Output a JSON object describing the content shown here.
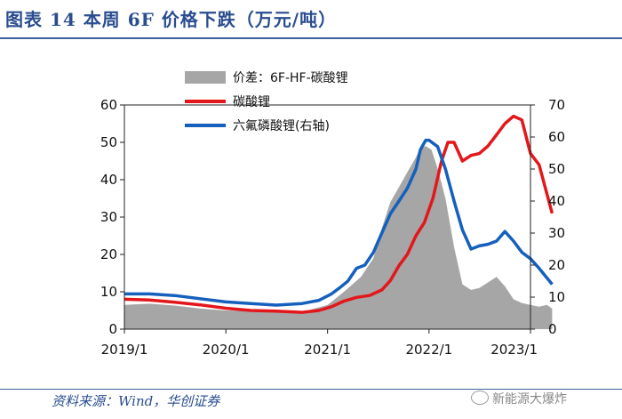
{
  "figure": {
    "title": "图表 14  本周 6F 价格下跌（万元/吨）",
    "source": "资料来源：Wind，华创证券",
    "watermark": "新能源大爆炸"
  },
  "chart_data": {
    "type": "line",
    "x_ticks": [
      "2019/1",
      "2020/1",
      "2021/1",
      "2022/1",
      "2023/1"
    ],
    "y_left": {
      "ticks": [
        0,
        10,
        20,
        30,
        40,
        50,
        60
      ],
      "range": [
        0,
        60
      ]
    },
    "y_right": {
      "ticks": [
        0,
        10,
        20,
        30,
        40,
        50,
        60,
        70
      ],
      "range": [
        0,
        70
      ]
    },
    "legend_position": "top-center",
    "colors": {
      "spread": "#a6a6a6",
      "li2co3": "#e3171b",
      "lipf6": "#1560bd"
    },
    "series": [
      {
        "name": "价差：6F-HF-碳酸锂",
        "kind": "area",
        "axis": "left",
        "points": [
          [
            "2019-01-01",
            6.5
          ],
          [
            "2019-04-01",
            6.8
          ],
          [
            "2019-07-01",
            6.3
          ],
          [
            "2019-10-01",
            5.5
          ],
          [
            "2020-01-01",
            5.0
          ],
          [
            "2020-04-01",
            4.8
          ],
          [
            "2020-07-01",
            4.5
          ],
          [
            "2020-10-01",
            4.6
          ],
          [
            "2021-01-01",
            6.5
          ],
          [
            "2021-03-01",
            10.0
          ],
          [
            "2021-05-01",
            14.0
          ],
          [
            "2021-06-15",
            19.0
          ],
          [
            "2021-07-15",
            27.0
          ],
          [
            "2021-08-15",
            34.0
          ],
          [
            "2021-09-15",
            38.0
          ],
          [
            "2021-10-15",
            42.0
          ],
          [
            "2021-11-15",
            46.0
          ],
          [
            "2021-12-01",
            48.5
          ],
          [
            "2021-12-20",
            49.0
          ],
          [
            "2022-01-10",
            48.0
          ],
          [
            "2022-02-01",
            43.0
          ],
          [
            "2022-03-01",
            35.0
          ],
          [
            "2022-04-01",
            22.0
          ],
          [
            "2022-05-01",
            12.0
          ],
          [
            "2022-06-01",
            10.5
          ],
          [
            "2022-07-01",
            11.0
          ],
          [
            "2022-08-01",
            12.5
          ],
          [
            "2022-09-01",
            14.0
          ],
          [
            "2022-10-01",
            11.5
          ],
          [
            "2022-11-01",
            8.0
          ],
          [
            "2022-12-01",
            7.0
          ],
          [
            "2023-01-01",
            6.5
          ],
          [
            "2023-02-01",
            6.0
          ],
          [
            "2023-03-01",
            6.5
          ],
          [
            "2023-03-20",
            5.5
          ]
        ]
      },
      {
        "name": "碳酸锂",
        "kind": "line",
        "axis": "left",
        "points": [
          [
            "2019-01-01",
            8.0
          ],
          [
            "2019-04-01",
            7.8
          ],
          [
            "2019-07-01",
            7.2
          ],
          [
            "2019-10-01",
            6.5
          ],
          [
            "2020-01-01",
            5.6
          ],
          [
            "2020-04-01",
            5.0
          ],
          [
            "2020-07-01",
            4.8
          ],
          [
            "2020-10-01",
            4.5
          ],
          [
            "2020-12-01",
            5.0
          ],
          [
            "2021-01-15",
            6.0
          ],
          [
            "2021-03-01",
            7.5
          ],
          [
            "2021-04-15",
            8.5
          ],
          [
            "2021-06-01",
            9.0
          ],
          [
            "2021-07-15",
            10.5
          ],
          [
            "2021-08-15",
            13.0
          ],
          [
            "2021-09-15",
            17.0
          ],
          [
            "2021-10-15",
            20.0
          ],
          [
            "2021-11-15",
            25.0
          ],
          [
            "2021-12-15",
            28.5
          ],
          [
            "2022-01-15",
            35.0
          ],
          [
            "2022-02-15",
            45.0
          ],
          [
            "2022-03-10",
            50.0
          ],
          [
            "2022-04-01",
            50.0
          ],
          [
            "2022-05-01",
            45.0
          ],
          [
            "2022-06-01",
            46.5
          ],
          [
            "2022-07-01",
            47.0
          ],
          [
            "2022-08-01",
            49.0
          ],
          [
            "2022-09-01",
            52.0
          ],
          [
            "2022-10-01",
            55.0
          ],
          [
            "2022-11-01",
            57.0
          ],
          [
            "2022-12-01",
            56.0
          ],
          [
            "2023-01-01",
            47.0
          ],
          [
            "2023-02-01",
            44.0
          ],
          [
            "2023-03-20",
            31.0
          ]
        ]
      },
      {
        "name": "六氟磷酸锂(右轴)",
        "kind": "line",
        "axis": "right",
        "points": [
          [
            "2019-01-01",
            11.0
          ],
          [
            "2019-04-01",
            11.0
          ],
          [
            "2019-07-01",
            10.5
          ],
          [
            "2019-10-01",
            9.5
          ],
          [
            "2020-01-01",
            8.5
          ],
          [
            "2020-04-01",
            8.0
          ],
          [
            "2020-07-01",
            7.5
          ],
          [
            "2020-10-01",
            8.0
          ],
          [
            "2020-12-01",
            9.0
          ],
          [
            "2021-01-15",
            11.0
          ],
          [
            "2021-02-15",
            13.0
          ],
          [
            "2021-03-15",
            15.0
          ],
          [
            "2021-04-15",
            19.0
          ],
          [
            "2021-05-15",
            20.0
          ],
          [
            "2021-06-15",
            24.0
          ],
          [
            "2021-07-15",
            30.0
          ],
          [
            "2021-08-15",
            36.0
          ],
          [
            "2021-09-15",
            40.0
          ],
          [
            "2021-10-15",
            44.0
          ],
          [
            "2021-11-15",
            50.0
          ],
          [
            "2021-12-01",
            56.0
          ],
          [
            "2021-12-20",
            59.0
          ],
          [
            "2022-01-01",
            59.0
          ],
          [
            "2022-02-01",
            57.0
          ],
          [
            "2022-03-01",
            50.0
          ],
          [
            "2022-04-01",
            40.0
          ],
          [
            "2022-05-01",
            31.0
          ],
          [
            "2022-06-01",
            25.0
          ],
          [
            "2022-07-01",
            26.0
          ],
          [
            "2022-08-01",
            26.5
          ],
          [
            "2022-09-01",
            27.5
          ],
          [
            "2022-10-01",
            30.5
          ],
          [
            "2022-11-01",
            27.5
          ],
          [
            "2022-12-01",
            24.0
          ],
          [
            "2023-01-01",
            22.0
          ],
          [
            "2023-02-01",
            19.0
          ],
          [
            "2023-03-20",
            14.0
          ]
        ]
      }
    ]
  }
}
